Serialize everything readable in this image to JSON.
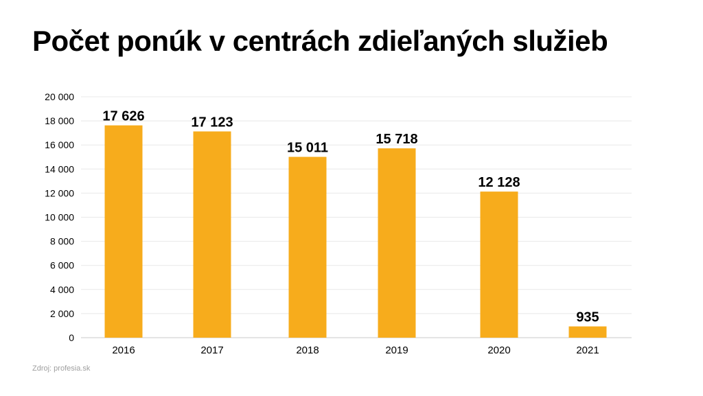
{
  "title": "Počet ponúk v centrách zdieľaných služieb",
  "source": "Zdroj: profesia.sk",
  "colors": {
    "bar": "#F7AC1C",
    "grid": "#E8E8E8",
    "axis": "#C8C8C8",
    "text": "#000000"
  },
  "chart_data": {
    "type": "bar",
    "title": "Počet ponúk v centrách zdieľaných služieb",
    "categories": [
      "2016",
      "2017",
      "2018",
      "2019",
      "2020",
      "2021"
    ],
    "values": [
      17626,
      17123,
      15011,
      15718,
      12128,
      935
    ],
    "value_labels": [
      "17 626",
      "17 123",
      "15 011",
      "15 718",
      "12 128",
      "935"
    ],
    "y_ticks": [
      0,
      2000,
      4000,
      6000,
      8000,
      10000,
      12000,
      14000,
      16000,
      18000,
      20000
    ],
    "y_tick_labels": [
      "0",
      "2 000",
      "4 000",
      "6 000",
      "8 000",
      "10 000",
      "12 000",
      "14 000",
      "16 000",
      "18 000",
      "20 000"
    ],
    "ylim": [
      0,
      20000
    ],
    "xlabel": "",
    "ylabel": "",
    "grid": true,
    "legend": "none"
  }
}
